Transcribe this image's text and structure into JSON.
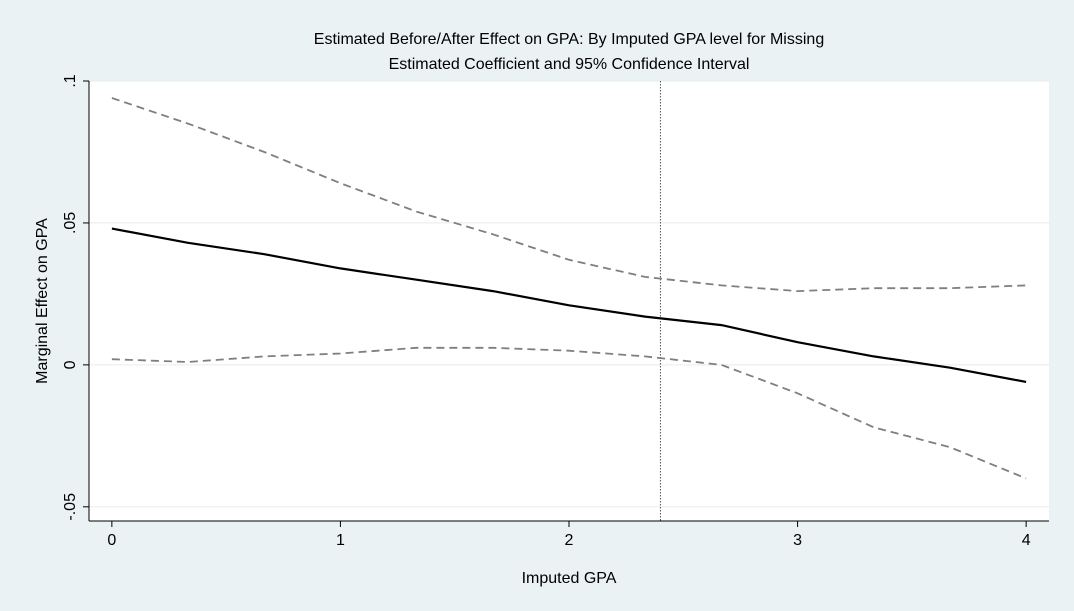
{
  "chart_data": {
    "type": "line",
    "title": "Estimated Before/After Effect on GPA: By Imputed GPA level for Missing",
    "subtitle": "Estimated Coefficient and 95% Confidence Interval",
    "xlabel": "Imputed GPA",
    "ylabel": "Marginal Effect on GPA",
    "xlim": [
      -0.1,
      4.1
    ],
    "ylim": [
      -0.055,
      0.1
    ],
    "x_ticks": [
      {
        "value": 0,
        "label": "0"
      },
      {
        "value": 1,
        "label": "1"
      },
      {
        "value": 2,
        "label": "2"
      },
      {
        "value": 3,
        "label": "3"
      },
      {
        "value": 4,
        "label": "4"
      }
    ],
    "y_ticks": [
      {
        "value": -0.05,
        "label": "-.05"
      },
      {
        "value": 0,
        "label": "0"
      },
      {
        "value": 0.05,
        "label": ".05"
      },
      {
        "value": 0.1,
        "label": ".1"
      }
    ],
    "grid": "horizontal",
    "reference_line": {
      "axis": "x",
      "value": 2.4,
      "style": "dotted"
    },
    "x": [
      0,
      0.333,
      0.667,
      1,
      1.333,
      1.667,
      2,
      2.333,
      2.667,
      3,
      3.333,
      3.667,
      4
    ],
    "series": [
      {
        "role": "estimate",
        "style": "solid",
        "color": "#000000",
        "values": [
          0.048,
          0.043,
          0.039,
          0.034,
          0.03,
          0.026,
          0.021,
          0.017,
          0.014,
          0.008,
          0.003,
          -0.001,
          -0.006
        ]
      },
      {
        "role": "upper",
        "style": "dashed",
        "color": "#7f7f7f",
        "values": [
          0.094,
          0.085,
          0.075,
          0.064,
          0.054,
          0.046,
          0.037,
          0.031,
          0.028,
          0.026,
          0.027,
          0.027,
          0.028
        ]
      },
      {
        "role": "lower",
        "style": "dashed",
        "color": "#7f7f7f",
        "values": [
          0.002,
          0.001,
          0.003,
          0.004,
          0.006,
          0.006,
          0.005,
          0.003,
          0.0,
          -0.01,
          -0.022,
          -0.029,
          -0.04
        ]
      }
    ],
    "colors": {
      "background": "#eaf2f3",
      "plot_background": "#ffffff",
      "grid": "#e3eeef"
    }
  }
}
